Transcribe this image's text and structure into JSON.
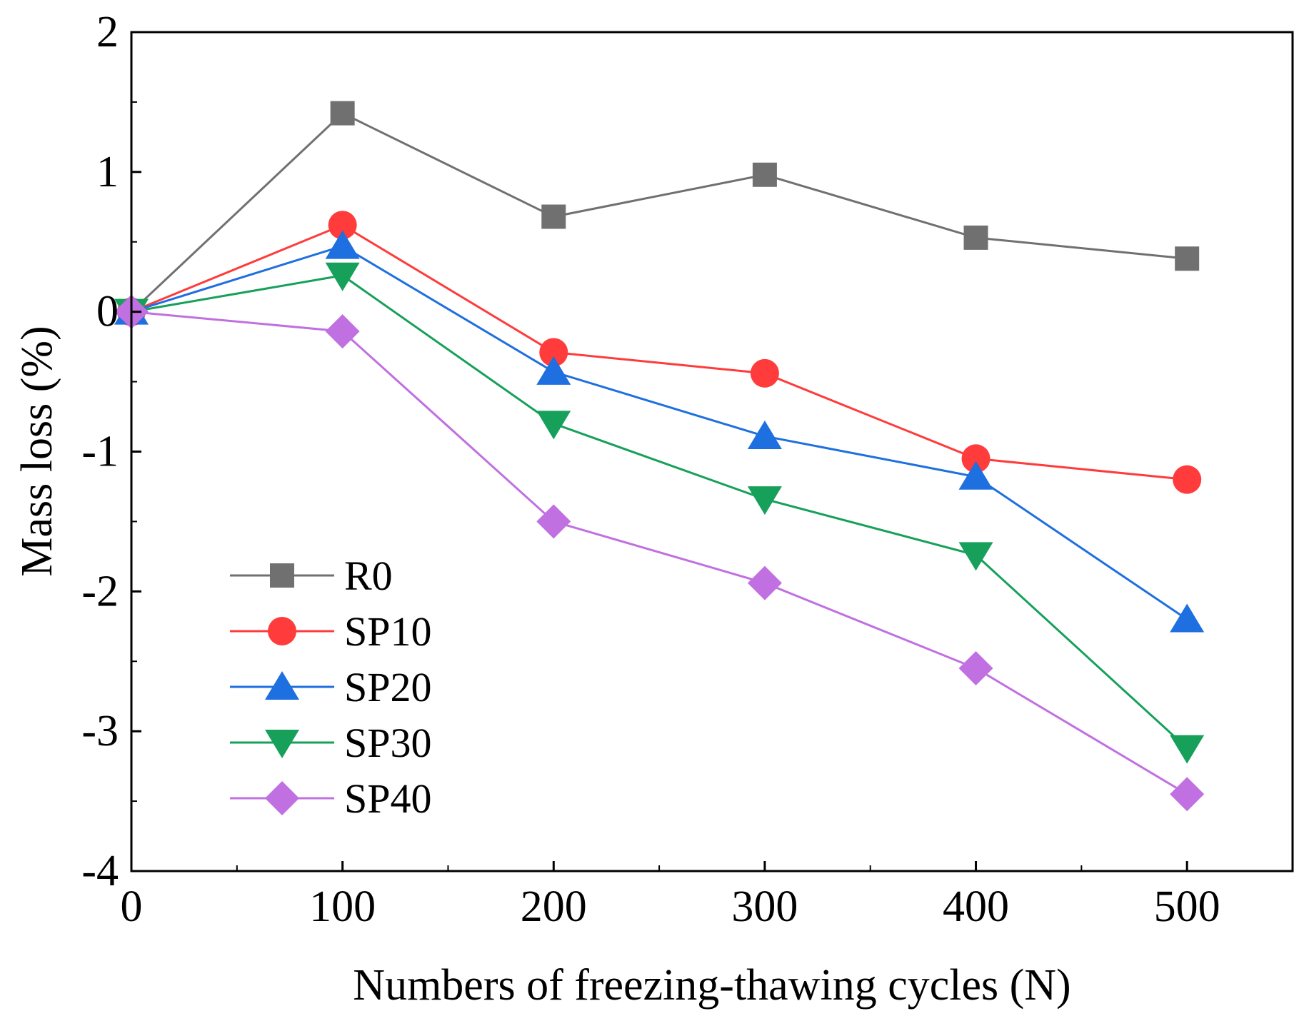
{
  "chart_data": {
    "type": "line",
    "title": "",
    "xlabel": "Numbers of freezing-thawing cycles (N)",
    "ylabel": "Mass loss (%)",
    "xlim": [
      0,
      550
    ],
    "ylim": [
      -4,
      2
    ],
    "x_ticks": [
      0,
      100,
      200,
      300,
      400,
      500
    ],
    "y_ticks": [
      -4,
      -3,
      -2,
      -1,
      0,
      1,
      2
    ],
    "x_tick_labels": [
      "0",
      "100",
      "200",
      "300",
      "400",
      "500"
    ],
    "y_tick_labels": [
      "-4",
      "-3",
      "-2",
      "-1",
      "0",
      "1",
      "2"
    ],
    "grid": false,
    "legend_position": "bottom-left",
    "x": [
      0,
      100,
      200,
      300,
      400,
      500
    ],
    "series": [
      {
        "name": "R0",
        "marker": "square",
        "color": "#707070",
        "values": [
          0,
          1.42,
          0.68,
          0.98,
          0.53,
          0.38
        ]
      },
      {
        "name": "SP10",
        "marker": "circle",
        "color": "#ff3b3b",
        "values": [
          0,
          0.62,
          -0.29,
          -0.44,
          -1.05,
          -1.2
        ]
      },
      {
        "name": "SP20",
        "marker": "triangle-up",
        "color": "#1e6fe0",
        "values": [
          0,
          0.47,
          -0.43,
          -0.89,
          -1.18,
          -2.2
        ]
      },
      {
        "name": "SP30",
        "marker": "triangle-down",
        "color": "#16a05a",
        "values": [
          0,
          0.26,
          -0.8,
          -1.34,
          -1.74,
          -3.12
        ]
      },
      {
        "name": "SP40",
        "marker": "diamond",
        "color": "#c070e0",
        "values": [
          0,
          -0.14,
          -1.5,
          -1.94,
          -2.55,
          -3.45
        ]
      }
    ]
  }
}
